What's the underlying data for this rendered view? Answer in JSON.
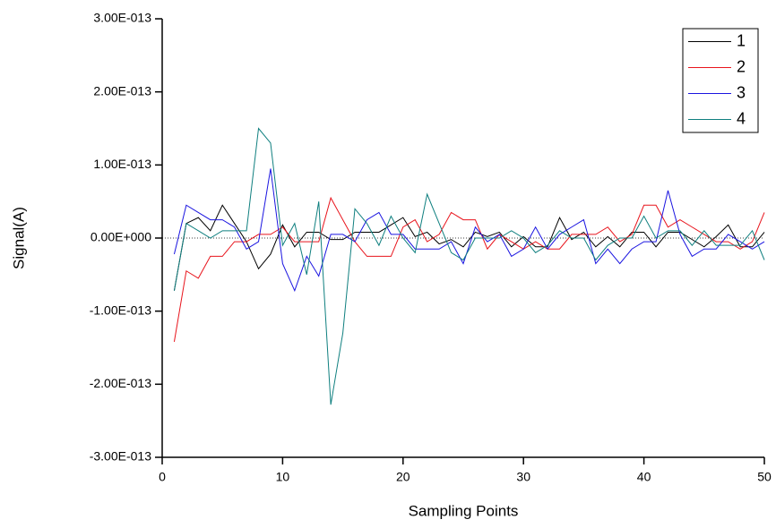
{
  "chart_data": {
    "type": "line",
    "x_label": "Sampling Points",
    "y_label": "Signal(A)",
    "x": [
      1,
      2,
      3,
      4,
      5,
      6,
      7,
      8,
      9,
      10,
      11,
      12,
      13,
      14,
      15,
      16,
      17,
      18,
      19,
      20,
      21,
      22,
      23,
      24,
      25,
      26,
      27,
      28,
      29,
      30,
      31,
      32,
      33,
      34,
      35,
      36,
      37,
      38,
      39,
      40,
      41,
      42,
      43,
      44,
      45,
      46,
      47,
      48,
      49,
      50
    ],
    "series": [
      {
        "name": "1",
        "color": "#000000",
        "values": [
          -7.2e-14,
          2e-14,
          2.8e-14,
          1e-14,
          4.5e-14,
          2e-14,
          -5e-15,
          -4.2e-14,
          -2.2e-14,
          1.8e-14,
          -1.2e-14,
          8e-15,
          8e-15,
          -2e-15,
          -2e-15,
          8e-15,
          8e-15,
          8e-15,
          1.8e-14,
          2.8e-14,
          2e-15,
          8e-15,
          -8e-15,
          -2e-15,
          -1.2e-14,
          8e-15,
          2e-15,
          8e-15,
          -1.2e-14,
          2e-15,
          -1.2e-14,
          -1.2e-14,
          2.8e-14,
          -2e-15,
          8e-15,
          -1.2e-14,
          2e-15,
          -1.2e-14,
          8e-15,
          8e-15,
          -1.2e-14,
          8e-15,
          8e-15,
          -2e-15,
          -1.2e-14,
          2e-15,
          1.8e-14,
          -1.2e-14,
          -1.2e-14,
          8e-15
        ]
      },
      {
        "name": "2",
        "color": "#e8141c",
        "values": [
          -1.42e-13,
          -4.5e-14,
          -5.5e-14,
          -2.5e-14,
          -2.5e-14,
          -5e-15,
          -5e-15,
          5e-15,
          5e-15,
          1.5e-14,
          -5e-15,
          -5e-15,
          -5e-15,
          5.5e-14,
          2.5e-14,
          -5e-15,
          -2.5e-14,
          -2.5e-14,
          -2.5e-14,
          1.5e-14,
          2.5e-14,
          -5e-15,
          5e-15,
          3.5e-14,
          2.5e-14,
          2.5e-14,
          -1.5e-14,
          5e-15,
          -5e-15,
          -1.5e-14,
          -5e-15,
          -1.5e-14,
          -1.5e-14,
          5e-15,
          5e-15,
          5e-15,
          1.5e-14,
          -5e-15,
          5e-15,
          4.5e-14,
          4.5e-14,
          1.5e-14,
          2.5e-14,
          1.5e-14,
          5e-15,
          -5e-15,
          -5e-15,
          -1.5e-14,
          -5e-15,
          3.5e-14
        ]
      },
      {
        "name": "3",
        "color": "#1a14e0",
        "values": [
          -2.2e-14,
          4.5e-14,
          3.5e-14,
          2.5e-14,
          2.5e-14,
          1.5e-14,
          -1.5e-14,
          -5e-15,
          9.5e-14,
          -3.5e-14,
          -7.2e-14,
          -2.5e-14,
          -5.2e-14,
          5e-15,
          5e-15,
          -5e-15,
          2.5e-14,
          3.5e-14,
          5e-15,
          5e-15,
          -1.5e-14,
          -1.5e-14,
          -1.5e-14,
          -5e-15,
          -3.5e-14,
          1.5e-14,
          -5e-15,
          5e-15,
          -2.5e-14,
          -1.5e-14,
          1.5e-14,
          -1.5e-14,
          5e-15,
          1.5e-14,
          2.5e-14,
          -3.5e-14,
          -1.5e-14,
          -3.5e-14,
          -1.5e-14,
          -5e-15,
          -5e-15,
          6.5e-14,
          5e-15,
          -2.5e-14,
          -1.5e-14,
          -1.5e-14,
          5e-15,
          -5e-15,
          -1.5e-14,
          -5e-15
        ]
      },
      {
        "name": "4",
        "color": "#0f7f7f",
        "values": [
          -7.2e-14,
          2e-14,
          1e-14,
          0,
          1e-14,
          1e-14,
          1e-14,
          1.5e-13,
          1.3e-13,
          -1e-14,
          2e-14,
          -5e-14,
          5e-14,
          -2.28e-13,
          -1.3e-13,
          4e-14,
          2e-14,
          -1e-14,
          3e-14,
          0,
          -2e-14,
          6e-14,
          2e-14,
          -2e-14,
          -3e-14,
          0,
          0,
          0,
          1e-14,
          0,
          -2e-14,
          -1e-14,
          1e-14,
          0,
          0,
          -3e-14,
          -1e-14,
          0,
          0,
          3e-14,
          0,
          1e-14,
          1e-14,
          -1e-14,
          1e-14,
          -1e-14,
          -1e-14,
          -1e-14,
          1e-14,
          -3e-14
        ]
      }
    ],
    "xlim": [
      0,
      50
    ],
    "xticks": [
      0,
      10,
      20,
      30,
      40,
      50
    ],
    "ylim": [
      -3e-13,
      3e-13
    ],
    "yticks": [
      {
        "value": -3e-13,
        "label": "-3.00E-013"
      },
      {
        "value": -2e-13,
        "label": "-2.00E-013"
      },
      {
        "value": -1e-13,
        "label": "-1.00E-013"
      },
      {
        "value": 0,
        "label": "0.00E+000"
      },
      {
        "value": 1e-13,
        "label": "1.00E-013"
      },
      {
        "value": 2e-13,
        "label": "2.00E-013"
      },
      {
        "value": 3e-13,
        "label": "3.00E-013"
      }
    ],
    "grid": false,
    "legend": "top-right"
  }
}
